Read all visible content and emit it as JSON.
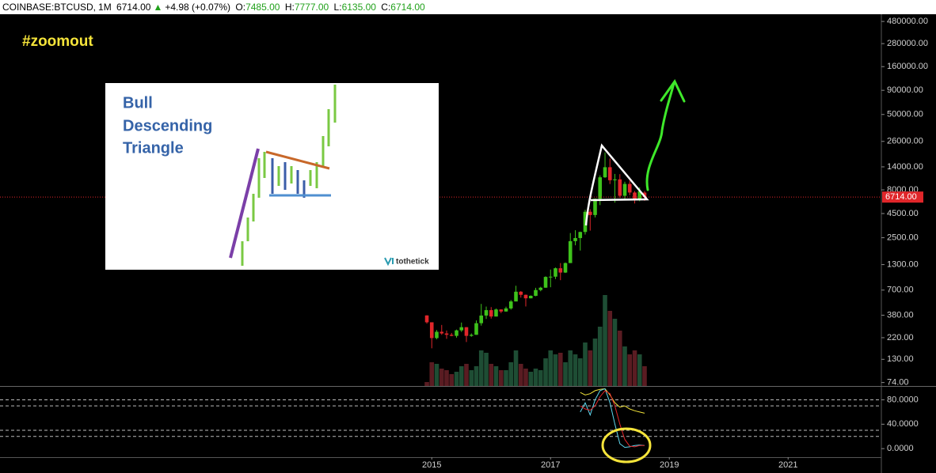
{
  "chart_data": {
    "type": "candlestick",
    "header": {
      "symbol": "COINBASE:BTCUSD,",
      "interval": "1M",
      "price": "6714.00",
      "arrow": "▲",
      "change": "+4.98 (+0.07%)",
      "open_label": "O:",
      "open": "7485.00",
      "high_label": "H:",
      "high": "7777.00",
      "low_label": "L:",
      "low": "6135.00",
      "close_label": "C:",
      "close": "6714.00"
    },
    "annotations": {
      "tag": "#zoomout",
      "inset_title": [
        "Bull",
        "Descending",
        "Triangle"
      ],
      "inset_logo": "tothetick"
    },
    "x": [
      2014.917,
      2015.0,
      2015.083,
      2015.167,
      2015.25,
      2015.333,
      2015.417,
      2015.5,
      2015.583,
      2015.667,
      2015.75,
      2015.833,
      2015.917,
      2016.0,
      2016.083,
      2016.167,
      2016.25,
      2016.333,
      2016.417,
      2016.5,
      2016.583,
      2016.667,
      2016.75,
      2016.833,
      2016.917,
      2017.0,
      2017.083,
      2017.167,
      2017.25,
      2017.333,
      2017.417,
      2017.5,
      2017.583,
      2017.667,
      2017.75,
      2017.833,
      2017.917,
      2018.0,
      2018.083,
      2018.167,
      2018.25,
      2018.333,
      2018.417,
      2018.5,
      2018.583
    ],
    "open": [
      378,
      320,
      218,
      254,
      244,
      236,
      230,
      263,
      284,
      230,
      236,
      313,
      377,
      430,
      368,
      437,
      416,
      448,
      531,
      673,
      624,
      573,
      609,
      701,
      742,
      964,
      970,
      1190,
      1072,
      1350,
      2300,
      2480,
      2875,
      4700,
      4340,
      6450,
      10860,
      13880,
      10110,
      10330,
      6925,
      9240,
      7500,
      6400,
      7485
    ],
    "high": [
      380,
      320,
      265,
      300,
      262,
      247,
      268,
      318,
      285,
      244,
      335,
      500,
      469,
      463,
      447,
      438,
      467,
      550,
      778,
      683,
      628,
      616,
      740,
      758,
      980,
      1153,
      1212,
      1350,
      1370,
      2800,
      3000,
      2900,
      4950,
      5000,
      6470,
      11400,
      19890,
      17170,
      11790,
      11720,
      9760,
      10000,
      7780,
      8500,
      7777
    ],
    "low": [
      310,
      170,
      212,
      236,
      214,
      228,
      220,
      253,
      198,
      225,
      236,
      295,
      347,
      350,
      368,
      400,
      413,
      435,
      531,
      583,
      470,
      573,
      603,
      680,
      740,
      750,
      915,
      891,
      1060,
      1350,
      2080,
      1830,
      2700,
      2970,
      4100,
      5520,
      10700,
      9220,
      5873,
      6600,
      6425,
      7030,
      5750,
      6070,
      6135
    ],
    "close": [
      320,
      218,
      254,
      244,
      236,
      230,
      263,
      284,
      230,
      236,
      313,
      377,
      430,
      368,
      437,
      416,
      448,
      531,
      673,
      624,
      573,
      609,
      701,
      742,
      964,
      970,
      1190,
      1072,
      1350,
      2300,
      2480,
      2875,
      4700,
      4340,
      6450,
      10860,
      13880,
      10110,
      10330,
      6925,
      9240,
      7500,
      6400,
      7730,
      6714
    ],
    "volume": [
      5,
      30,
      28,
      22,
      20,
      15,
      18,
      25,
      28,
      20,
      25,
      45,
      42,
      28,
      25,
      20,
      20,
      30,
      45,
      28,
      22,
      18,
      22,
      20,
      35,
      45,
      40,
      42,
      30,
      45,
      40,
      35,
      55,
      45,
      60,
      75,
      115,
      95,
      85,
      70,
      50,
      40,
      45,
      40,
      25
    ],
    "up_color": "#3ec21b",
    "down_color": "#e0262a",
    "volume_up_color": "#1e4d34",
    "volume_down_color": "#5a1c22",
    "log_scale": true,
    "ylim": [
      68,
      572000
    ],
    "yticks": [
      {
        "value": 74,
        "label": "74.00"
      },
      {
        "value": 130,
        "label": "130.00"
      },
      {
        "value": 220,
        "label": "220.00"
      },
      {
        "value": 380,
        "label": "380.00"
      },
      {
        "value": 700,
        "label": "700.00"
      },
      {
        "value": 1300,
        "label": "1300.00"
      },
      {
        "value": 2500,
        "label": "2500.00"
      },
      {
        "value": 4500,
        "label": "4500.00"
      },
      {
        "value": 8000,
        "label": "8000.00"
      },
      {
        "value": 14000,
        "label": "14000.00"
      },
      {
        "value": 26000,
        "label": "26000.00"
      },
      {
        "value": 50000,
        "label": "50000.00"
      },
      {
        "value": 90000,
        "label": "90000.00"
      },
      {
        "value": 160000,
        "label": "160000.00"
      },
      {
        "value": 280000,
        "label": "280000.00"
      },
      {
        "value": 480000,
        "label": "480000.00"
      }
    ],
    "xlim": [
      2007.73,
      2022.57
    ],
    "xticks": [
      2015,
      2017,
      2019,
      2021
    ],
    "last_price": {
      "value": 6714,
      "label": "6714.00"
    },
    "indicator": {
      "x": [
        2017.5,
        2017.583,
        2017.667,
        2017.75,
        2017.833,
        2017.917,
        2018.0,
        2018.083,
        2018.167,
        2018.25,
        2018.333,
        2018.417,
        2018.5,
        2018.583
      ],
      "ylim": [
        -14,
        100
      ],
      "yticks": [
        {
          "value": 0,
          "label": "0.0000"
        },
        {
          "value": 40,
          "label": "40.0000"
        },
        {
          "value": 80,
          "label": "80.0000"
        }
      ],
      "levels": [
        80,
        70,
        30,
        20
      ],
      "series": [
        {
          "color": "#f2e33a",
          "values": [
            92,
            88,
            90,
            95,
            97,
            98,
            88,
            75,
            68,
            70,
            65,
            62,
            60,
            58
          ]
        },
        {
          "color": "#5fd9f0",
          "values": [
            60,
            75,
            55,
            80,
            95,
            98,
            75,
            40,
            8,
            2,
            3,
            5,
            6,
            5
          ]
        },
        {
          "color": "#e0262a",
          "values": [
            70,
            65,
            63,
            70,
            85,
            95,
            90,
            70,
            40,
            15,
            4,
            3,
            5,
            5
          ]
        }
      ]
    }
  }
}
